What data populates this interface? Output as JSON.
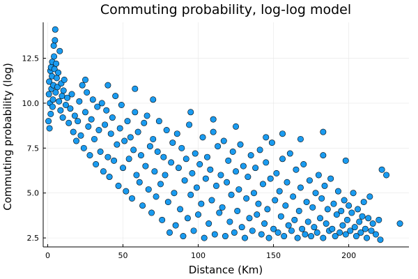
{
  "chart_data": {
    "type": "scatter",
    "title": "Commuting probability, log-log model",
    "xlabel": "Distance (Km)",
    "ylabel": "Commuting probability (log)",
    "xlim": [
      -3,
      240
    ],
    "ylim": [
      2.0,
      14.5
    ],
    "xticks": [
      0,
      50,
      100,
      150,
      200
    ],
    "yticks": [
      2.5,
      5.0,
      7.5,
      10.0,
      12.5
    ],
    "xtick_labels": [
      "0",
      "50",
      "100",
      "150",
      "200"
    ],
    "ytick_labels": [
      "2.5",
      "5.0",
      "7.5",
      "10.0",
      "12.5"
    ],
    "grid": true,
    "legend": false,
    "marker_color": "#1a9bf0",
    "marker_edge_color": "#000000",
    "series": [
      {
        "points": [
          [
            0.5,
            9.0
          ],
          [
            0.8,
            10.5
          ],
          [
            1.0,
            11.2
          ],
          [
            1.2,
            8.6
          ],
          [
            1.5,
            10.0
          ],
          [
            1.8,
            11.8
          ],
          [
            2.0,
            9.4
          ],
          [
            2.2,
            12.0
          ],
          [
            2.5,
            10.8
          ],
          [
            2.8,
            11.5
          ],
          [
            3.0,
            12.3
          ],
          [
            3.2,
            9.8
          ],
          [
            3.5,
            10.2
          ],
          [
            3.8,
            11.0
          ],
          [
            4.0,
            13.2
          ],
          [
            4.2,
            12.6
          ],
          [
            4.5,
            11.9
          ],
          [
            4.8,
            13.5
          ],
          [
            5.0,
            14.1
          ],
          [
            5.3,
            10.6
          ],
          [
            5.6,
            12.2
          ],
          [
            6.0,
            11.4
          ],
          [
            6.5,
            10.9
          ],
          [
            7.0,
            11.7
          ],
          [
            7.5,
            10.1
          ],
          [
            8.0,
            12.9
          ],
          [
            8.5,
            9.6
          ],
          [
            9.0,
            11.1
          ],
          [
            9.5,
            10.4
          ],
          [
            10.0,
            9.2
          ],
          [
            10.5,
            10.7
          ],
          [
            11.0,
            11.3
          ],
          [
            12.0,
            9.9
          ],
          [
            13.0,
            10.3
          ],
          [
            14.0,
            8.9
          ],
          [
            15.0,
            9.7
          ],
          [
            16.0,
            10.5
          ],
          [
            17.0,
            8.4
          ],
          [
            18.0,
            9.3
          ],
          [
            19.0,
            7.9
          ],
          [
            20.0,
            9.0
          ],
          [
            21.0,
            10.1
          ],
          [
            22.0,
            8.2
          ],
          [
            23.0,
            11.0
          ],
          [
            24.0,
            7.5
          ],
          [
            25.0,
            9.5
          ],
          [
            26.0,
            10.6
          ],
          [
            27.0,
            8.7
          ],
          [
            28.0,
            7.1
          ],
          [
            29.0,
            9.1
          ],
          [
            30.0,
            10.2
          ],
          [
            31.0,
            8.0
          ],
          [
            32.0,
            6.6
          ],
          [
            33.0,
            9.8
          ],
          [
            34.0,
            8.5
          ],
          [
            35.0,
            7.3
          ],
          [
            36.0,
            10.0
          ],
          [
            37.0,
            6.2
          ],
          [
            38.0,
            8.8
          ],
          [
            39.0,
            9.6
          ],
          [
            40.0,
            7.0
          ],
          [
            41.0,
            5.9
          ],
          [
            42.0,
            8.3
          ],
          [
            43.0,
            9.2
          ],
          [
            44.0,
            6.8
          ],
          [
            45.0,
            10.4
          ],
          [
            46.0,
            7.7
          ],
          [
            47.0,
            5.4
          ],
          [
            48.0,
            8.6
          ],
          [
            49.0,
            9.9
          ],
          [
            50.0,
            6.4
          ],
          [
            51.0,
            7.9
          ],
          [
            52.0,
            5.1
          ],
          [
            53.0,
            9.0
          ],
          [
            54.0,
            6.9
          ],
          [
            55.0,
            8.1
          ],
          [
            56.0,
            4.7
          ],
          [
            57.0,
            7.4
          ],
          [
            58.0,
            9.5
          ],
          [
            59.0,
            6.0
          ],
          [
            60.0,
            8.4
          ],
          [
            61.0,
            5.6
          ],
          [
            62.0,
            7.1
          ],
          [
            63.0,
            4.3
          ],
          [
            64.0,
            8.9
          ],
          [
            65.0,
            6.5
          ],
          [
            66.0,
            9.3
          ],
          [
            67.0,
            5.2
          ],
          [
            68.0,
            7.6
          ],
          [
            69.0,
            3.9
          ],
          [
            70.0,
            8.0
          ],
          [
            71.0,
            6.2
          ],
          [
            72.0,
            4.8
          ],
          [
            73.0,
            7.3
          ],
          [
            74.0,
            9.0
          ],
          [
            75.0,
            5.5
          ],
          [
            76.0,
            3.5
          ],
          [
            77.0,
            7.0
          ],
          [
            78.0,
            6.0
          ],
          [
            79.0,
            8.5
          ],
          [
            80.0,
            4.5
          ],
          [
            81.0,
            2.8
          ],
          [
            82.0,
            6.7
          ],
          [
            83.0,
            7.8
          ],
          [
            84.0,
            5.0
          ],
          [
            85.0,
            3.2
          ],
          [
            86.0,
            8.3
          ],
          [
            87.0,
            6.4
          ],
          [
            88.0,
            4.1
          ],
          [
            89.0,
            7.5
          ],
          [
            90.0,
            2.6
          ],
          [
            91.0,
            5.7
          ],
          [
            92.0,
            6.9
          ],
          [
            93.0,
            3.6
          ],
          [
            94.0,
            8.8
          ],
          [
            95.0,
            4.9
          ],
          [
            96.0,
            6.1
          ],
          [
            97.0,
            2.9
          ],
          [
            98.0,
            7.2
          ],
          [
            99.0,
            5.3
          ],
          [
            100.0,
            3.8
          ],
          [
            101.0,
            6.6
          ],
          [
            102.0,
            4.4
          ],
          [
            103.0,
            8.1
          ],
          [
            104.0,
            2.5
          ],
          [
            105.0,
            5.8
          ],
          [
            106.0,
            7.0
          ],
          [
            107.0,
            3.3
          ],
          [
            108.0,
            6.3
          ],
          [
            109.0,
            4.6
          ],
          [
            110.0,
            8.4
          ],
          [
            111.0,
            2.7
          ],
          [
            112.0,
            5.4
          ],
          [
            113.0,
            7.6
          ],
          [
            114.0,
            3.9
          ],
          [
            115.0,
            6.0
          ],
          [
            116.0,
            4.2
          ],
          [
            117.0,
            7.9
          ],
          [
            118.0,
            2.6
          ],
          [
            119.0,
            5.6
          ],
          [
            120.0,
            6.8
          ],
          [
            121.0,
            3.4
          ],
          [
            122.0,
            4.9
          ],
          [
            123.0,
            7.3
          ],
          [
            124.0,
            2.8
          ],
          [
            125.0,
            6.2
          ],
          [
            126.0,
            4.0
          ],
          [
            127.0,
            5.2
          ],
          [
            128.0,
            7.7
          ],
          [
            129.0,
            3.1
          ],
          [
            130.0,
            6.5
          ],
          [
            131.0,
            2.5
          ],
          [
            132.0,
            4.7
          ],
          [
            133.0,
            5.9
          ],
          [
            134.0,
            3.6
          ],
          [
            135.0,
            7.1
          ],
          [
            136.0,
            2.9
          ],
          [
            137.0,
            5.0
          ],
          [
            138.0,
            6.4
          ],
          [
            139.0,
            3.8
          ],
          [
            140.0,
            4.4
          ],
          [
            141.0,
            7.4
          ],
          [
            142.0,
            2.7
          ],
          [
            143.0,
            5.5
          ],
          [
            144.0,
            3.3
          ],
          [
            145.0,
            6.7
          ],
          [
            146.0,
            4.1
          ],
          [
            147.0,
            2.5
          ],
          [
            148.0,
            5.8
          ],
          [
            149.0,
            7.8
          ],
          [
            150.0,
            3.0
          ],
          [
            151.0,
            4.6
          ],
          [
            152.0,
            6.1
          ],
          [
            153.0,
            2.8
          ],
          [
            154.0,
            5.1
          ],
          [
            155.0,
            3.7
          ],
          [
            156.0,
            6.9
          ],
          [
            157.0,
            2.6
          ],
          [
            158.0,
            4.3
          ],
          [
            159.0,
            5.6
          ],
          [
            160.0,
            3.2
          ],
          [
            161.0,
            7.2
          ],
          [
            162.0,
            2.9
          ],
          [
            163.0,
            4.8
          ],
          [
            164.0,
            3.5
          ],
          [
            165.0,
            6.3
          ],
          [
            166.0,
            2.5
          ],
          [
            167.0,
            4.0
          ],
          [
            168.0,
            5.3
          ],
          [
            169.0,
            3.0
          ],
          [
            170.0,
            6.6
          ],
          [
            171.0,
            2.7
          ],
          [
            172.0,
            4.5
          ],
          [
            173.0,
            3.4
          ],
          [
            174.0,
            5.7
          ],
          [
            175.0,
            2.6
          ],
          [
            176.0,
            4.2
          ],
          [
            177.0,
            3.1
          ],
          [
            178.0,
            5.0
          ],
          [
            179.0,
            2.8
          ],
          [
            180.0,
            6.0
          ],
          [
            181.0,
            3.6
          ],
          [
            182.0,
            4.7
          ],
          [
            183.0,
            2.5
          ],
          [
            184.0,
            5.4
          ],
          [
            185.0,
            3.3
          ],
          [
            186.0,
            4.1
          ],
          [
            187.0,
            2.9
          ],
          [
            188.0,
            5.8
          ],
          [
            189.0,
            3.0
          ],
          [
            190.0,
            4.4
          ],
          [
            191.0,
            2.6
          ],
          [
            192.0,
            3.8
          ],
          [
            193.0,
            5.1
          ],
          [
            194.0,
            2.8
          ],
          [
            195.0,
            4.0
          ],
          [
            196.0,
            3.2
          ],
          [
            197.0,
            4.6
          ],
          [
            198.0,
            2.7
          ],
          [
            199.0,
            3.5
          ],
          [
            200.0,
            4.3
          ],
          [
            201.0,
            2.9
          ],
          [
            202.0,
            3.9
          ],
          [
            203.0,
            5.0
          ],
          [
            204.0,
            3.1
          ],
          [
            205.0,
            2.6
          ],
          [
            206.0,
            4.1
          ],
          [
            207.0,
            3.4
          ],
          [
            208.0,
            2.8
          ],
          [
            209.0,
            3.7
          ],
          [
            210.0,
            4.5
          ],
          [
            211.0,
            3.0
          ],
          [
            212.0,
            2.5
          ],
          [
            213.0,
            3.6
          ],
          [
            214.0,
            4.8
          ],
          [
            215.0,
            2.9
          ],
          [
            216.0,
            3.3
          ],
          [
            218.0,
            2.7
          ],
          [
            220.0,
            3.5
          ],
          [
            221.0,
            2.4
          ],
          [
            222.0,
            6.3
          ],
          [
            225.0,
            6.0
          ],
          [
            234.0,
            3.3
          ],
          [
            198.0,
            6.8
          ],
          [
            183.0,
            7.1
          ],
          [
            168.0,
            8.0
          ],
          [
            156.0,
            8.3
          ],
          [
            183.0,
            8.4
          ],
          [
            145.0,
            8.1
          ],
          [
            125.0,
            8.7
          ],
          [
            110.0,
            9.1
          ],
          [
            95.0,
            9.5
          ],
          [
            70.0,
            10.2
          ],
          [
            58.0,
            10.8
          ],
          [
            40.0,
            11.0
          ],
          [
            25.0,
            11.3
          ]
        ]
      }
    ]
  }
}
